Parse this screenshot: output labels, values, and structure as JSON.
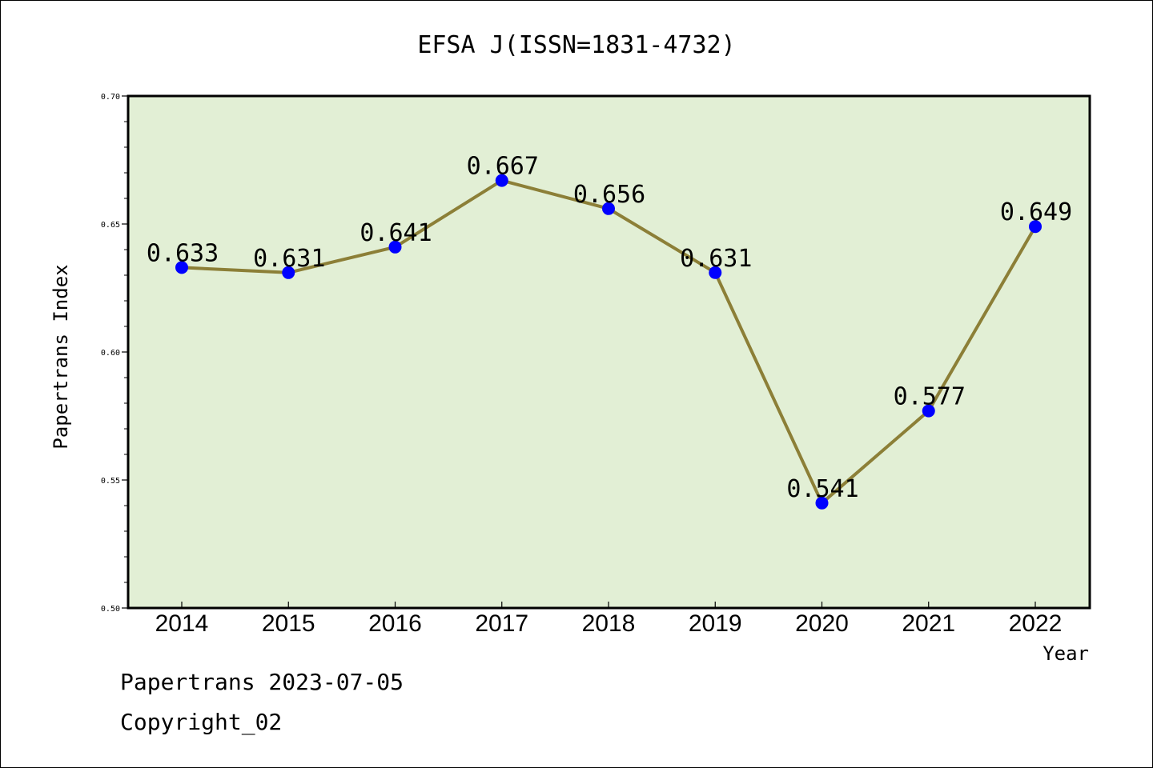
{
  "footer": {
    "line1": "Papertrans 2023-07-05",
    "line2": "Copyright_02"
  },
  "colors": {
    "plot_background": "#e2efd5",
    "line": "#8c7f37",
    "marker": "#0000ff",
    "axis": "#000000"
  },
  "chart_data": {
    "type": "line",
    "title": "EFSA J(ISSN=1831-4732)",
    "xlabel": "Year",
    "ylabel": "Papertrans Index",
    "categories": [
      "2014",
      "2015",
      "2016",
      "2017",
      "2018",
      "2019",
      "2020",
      "2021",
      "2022"
    ],
    "series": [
      {
        "values": [
          0.633,
          0.631,
          0.641,
          0.667,
          0.656,
          0.631,
          0.541,
          0.577,
          0.649
        ],
        "labels": [
          "0.633",
          "0.631",
          "0.641",
          "0.667",
          "0.656",
          "0.631",
          "0.541",
          "0.577",
          "0.649"
        ]
      }
    ],
    "ylim": [
      0.5,
      0.7
    ],
    "yticks": [
      "0.50",
      "0.55",
      "0.60",
      "0.65",
      "0.70"
    ],
    "grid": false,
    "legend": "none"
  }
}
